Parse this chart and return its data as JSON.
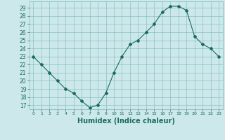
{
  "x": [
    0,
    1,
    2,
    3,
    4,
    5,
    6,
    7,
    8,
    9,
    10,
    11,
    12,
    13,
    14,
    15,
    16,
    17,
    18,
    19,
    20,
    21,
    22,
    23
  ],
  "y": [
    23,
    22,
    21,
    20,
    19,
    18.5,
    17.5,
    16.7,
    17,
    18.5,
    21,
    23,
    24.5,
    25,
    26,
    27,
    28.5,
    29.2,
    29.2,
    28.7,
    25.5,
    24.5,
    24,
    23
  ],
  "line_color": "#1a6b5e",
  "marker": "D",
  "marker_size": 2.0,
  "bg_color": "#cce8ea",
  "grid_color": "#7ab8b8",
  "xlabel": "Humidex (Indice chaleur)",
  "xlabel_fontsize": 7,
  "ylabel_ticks": [
    17,
    18,
    19,
    20,
    21,
    22,
    23,
    24,
    25,
    26,
    27,
    28,
    29
  ],
  "xtick_labels": [
    "0",
    "1",
    "2",
    "3",
    "4",
    "5",
    "6",
    "7",
    "8",
    "9",
    "10",
    "11",
    "12",
    "13",
    "14",
    "15",
    "16",
    "17",
    "18",
    "19",
    "20",
    "21",
    "22",
    "23"
  ],
  "ylim": [
    16.5,
    29.8
  ],
  "xlim": [
    -0.5,
    23.5
  ]
}
